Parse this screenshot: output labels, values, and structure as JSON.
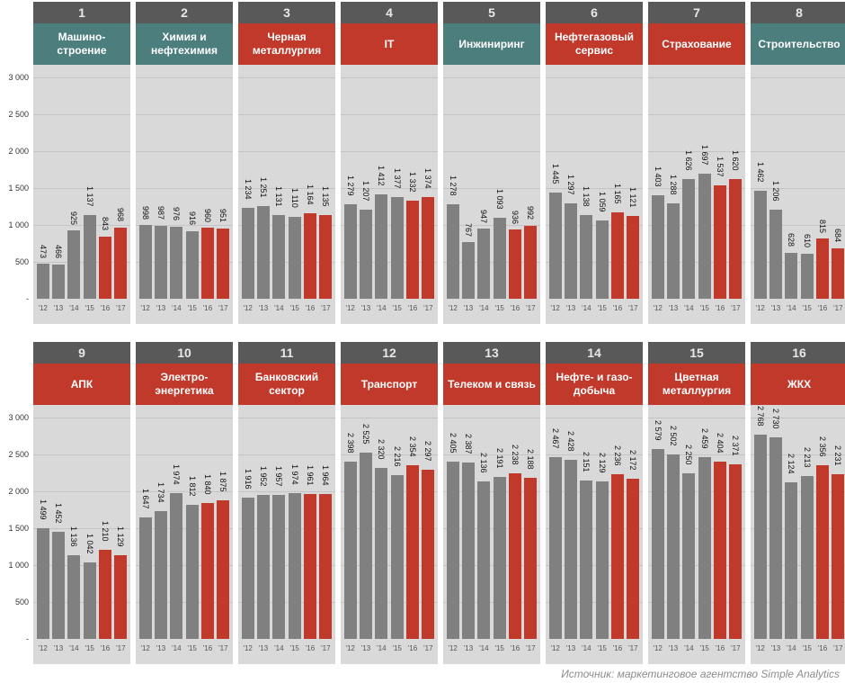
{
  "colors": {
    "teal": "#4d7e7e",
    "red": "#c0392b",
    "gray_bar": "#808080",
    "red_bar": "#c0392b",
    "num_bar": "#595959",
    "plot_bg": "#d9d9d9"
  },
  "chart_data": {
    "type": "bar",
    "title": "",
    "categories": [
      "'12",
      "'13",
      "'14",
      "'15",
      "'16",
      "'17"
    ],
    "highlight_categories": [
      "'16",
      "'17"
    ],
    "ylim": [
      0,
      3000
    ],
    "yticks": [
      0,
      500,
      1000,
      1500,
      2000,
      2500,
      3000
    ],
    "ytick_labels": [
      "-",
      "500",
      "1 000",
      "1 500",
      "2 000",
      "2 500",
      "3 000"
    ],
    "grid": true,
    "panels": [
      {
        "num": "1",
        "name": "Машино-строение",
        "header_color": "teal",
        "values": [
          473,
          466,
          925,
          1137,
          843,
          968
        ],
        "labels": [
          "473",
          "466",
          "925",
          "1 137",
          "843",
          "968"
        ]
      },
      {
        "num": "2",
        "name": "Химия и нефтехимия",
        "header_color": "teal",
        "values": [
          998,
          987,
          976,
          916,
          960,
          951
        ],
        "labels": [
          "998",
          "987",
          "976",
          "916",
          "960",
          "951"
        ]
      },
      {
        "num": "3",
        "name": "Черная металлургия",
        "header_color": "red",
        "values": [
          1234,
          1251,
          1131,
          1110,
          1164,
          1135
        ],
        "labels": [
          "1 234",
          "1 251",
          "1 131",
          "1 110",
          "1 164",
          "1 135"
        ]
      },
      {
        "num": "4",
        "name": "IT",
        "header_color": "red",
        "values": [
          1279,
          1207,
          1412,
          1377,
          1332,
          1374
        ],
        "labels": [
          "1 279",
          "1 207",
          "1 412",
          "1 377",
          "1 332",
          "1 374"
        ]
      },
      {
        "num": "5",
        "name": "Инжиниринг",
        "header_color": "teal",
        "values": [
          1278,
          767,
          947,
          1093,
          936,
          992
        ],
        "labels": [
          "1 278",
          "767",
          "947",
          "1 093",
          "936",
          "992"
        ]
      },
      {
        "num": "6",
        "name": "Нефтегазовый сервис",
        "header_color": "red",
        "values": [
          1445,
          1297,
          1138,
          1059,
          1165,
          1121
        ],
        "labels": [
          "1 445",
          "1 297",
          "1 138",
          "1 059",
          "1 165",
          "1 121"
        ]
      },
      {
        "num": "7",
        "name": "Страхование",
        "header_color": "red",
        "values": [
          1403,
          1288,
          1626,
          1697,
          1537,
          1620
        ],
        "labels": [
          "1 403",
          "1 288",
          "1 626",
          "1 697",
          "1 537",
          "1 620"
        ]
      },
      {
        "num": "8",
        "name": "Строительство",
        "header_color": "teal",
        "values": [
          1462,
          1206,
          628,
          610,
          815,
          684
        ],
        "labels": [
          "1 462",
          "1 206",
          "628",
          "610",
          "815",
          "684"
        ]
      },
      {
        "num": "9",
        "name": "АПК",
        "header_color": "red",
        "values": [
          1499,
          1452,
          1136,
          1042,
          1210,
          1129
        ],
        "labels": [
          "1 499",
          "1 452",
          "1 136",
          "1 042",
          "1 210",
          "1 129"
        ]
      },
      {
        "num": "10",
        "name": "Электро-энергетика",
        "header_color": "red",
        "values": [
          1647,
          1734,
          1974,
          1812,
          1840,
          1875
        ],
        "labels": [
          "1 647",
          "1 734",
          "1 974",
          "1 812",
          "1 840",
          "1 875"
        ]
      },
      {
        "num": "11",
        "name": "Банковский сектор",
        "header_color": "red",
        "values": [
          1916,
          1952,
          1957,
          1974,
          1961,
          1964
        ],
        "labels": [
          "1 916",
          "1 952",
          "1 957",
          "1 974",
          "1 961",
          "1 964"
        ]
      },
      {
        "num": "12",
        "name": "Транспорт",
        "header_color": "red",
        "values": [
          2398,
          2525,
          2320,
          2216,
          2354,
          2297
        ],
        "labels": [
          "2 398",
          "2 525",
          "2 320",
          "2 216",
          "2 354",
          "2 297"
        ]
      },
      {
        "num": "13",
        "name": "Телеком и связь",
        "header_color": "red",
        "values": [
          2405,
          2387,
          2136,
          2191,
          2238,
          2188
        ],
        "labels": [
          "2 405",
          "2 387",
          "2 136",
          "2 191",
          "2 238",
          "2 188"
        ]
      },
      {
        "num": "14",
        "name": "Нефте- и газо-добыча",
        "header_color": "red",
        "values": [
          2467,
          2428,
          2151,
          2129,
          2236,
          2172
        ],
        "labels": [
          "2 467",
          "2 428",
          "2 151",
          "2 129",
          "2 236",
          "2 172"
        ]
      },
      {
        "num": "15",
        "name": "Цветная металлургия",
        "header_color": "red",
        "values": [
          2579,
          2502,
          2250,
          2459,
          2404,
          2371
        ],
        "labels": [
          "2 579",
          "2 502",
          "2 250",
          "2 459",
          "2 404",
          "2 371"
        ]
      },
      {
        "num": "16",
        "name": "ЖКХ",
        "header_color": "red",
        "values": [
          2768,
          2730,
          2124,
          2213,
          2356,
          2231
        ],
        "labels": [
          "2 768",
          "2 730",
          "2 124",
          "2 213",
          "2 356",
          "2 231"
        ]
      }
    ]
  },
  "source": "Источник: маркетинговое агентство Simple Analytics"
}
